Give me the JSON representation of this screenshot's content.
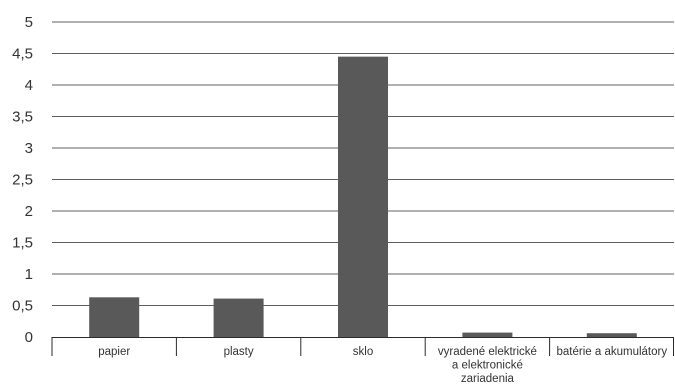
{
  "chart_data": {
    "type": "bar",
    "categories": [
      [
        "papier"
      ],
      [
        "plasty"
      ],
      [
        "sklo"
      ],
      [
        "vyradené elektrické",
        "a elektronické",
        "zariadenia"
      ],
      [
        "batérie a akumulátory"
      ]
    ],
    "values": [
      0.63,
      0.61,
      4.45,
      0.07,
      0.06
    ],
    "ylim": [
      0,
      5
    ],
    "yticks": [
      "0",
      "0,5",
      "1",
      "1,5",
      "2",
      "2,5",
      "3",
      "3,5",
      "4",
      "4,5",
      "5"
    ],
    "ytick_values": [
      0,
      0.5,
      1,
      1.5,
      2,
      2.5,
      3,
      3.5,
      4,
      4.5,
      5
    ],
    "grid": true,
    "colors": {
      "bar": "#595959",
      "grid": "#2b2b2b",
      "text": "#333333"
    }
  }
}
